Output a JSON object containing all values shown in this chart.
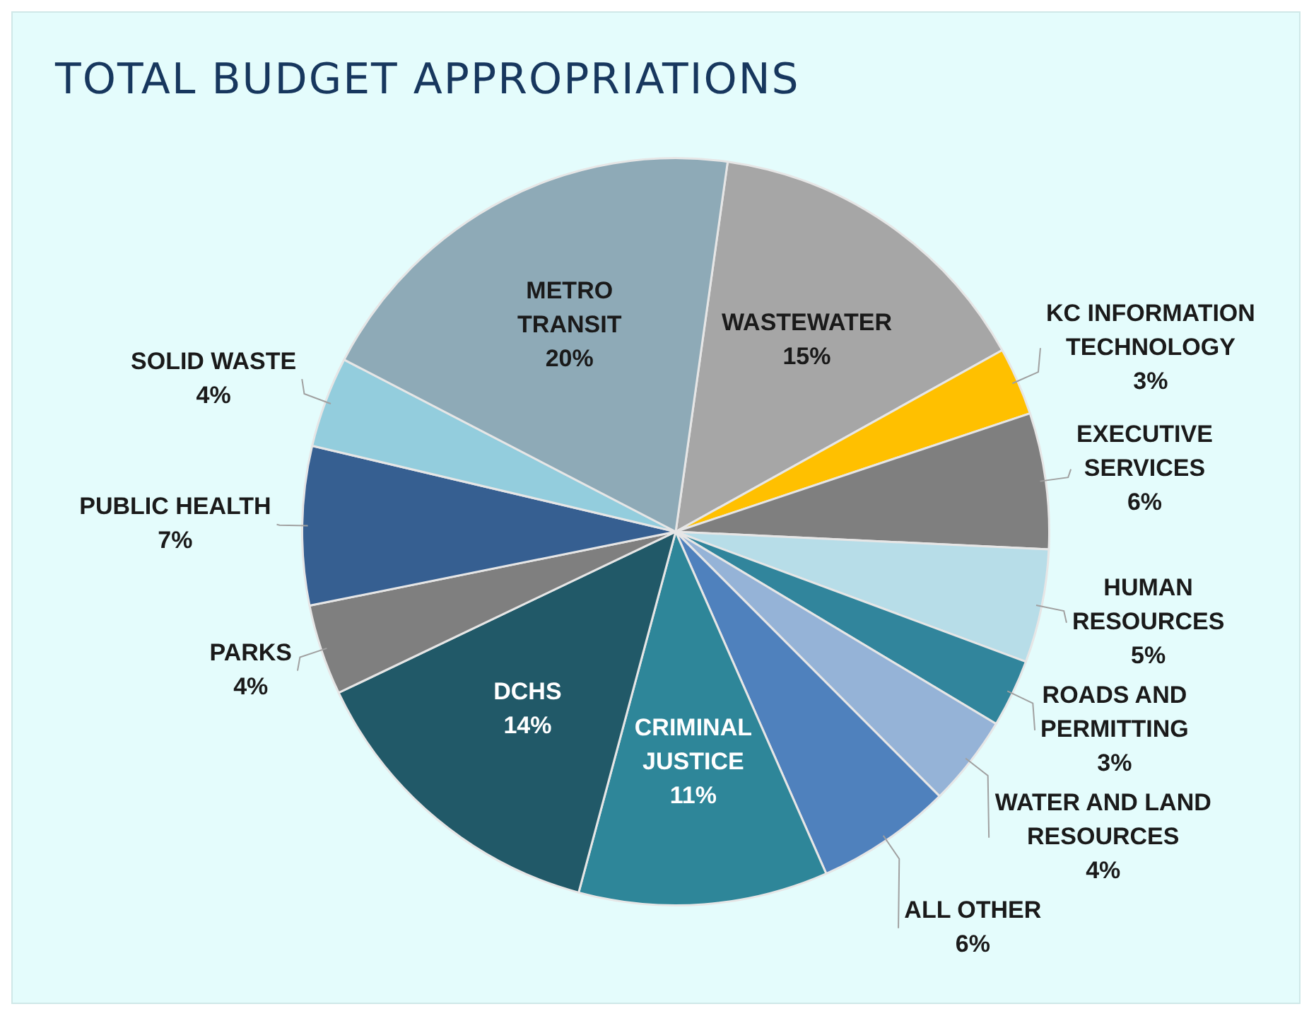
{
  "chart_data": {
    "type": "pie",
    "title": "TOTAL BUDGET APPROPRIATIONS",
    "categories": [
      "WASTEWATER",
      "KC INFORMATION TECHNOLOGY",
      "EXECUTIVE SERVICES",
      "HUMAN RESOURCES",
      "ROADS AND PERMITTING",
      "WATER AND LAND RESOURCES",
      "ALL OTHER",
      "CRIMINAL JUSTICE",
      "DCHS",
      "PARKS",
      "PUBLIC HEALTH",
      "SOLID WASTE",
      "METRO TRANSIT"
    ],
    "values": [
      15,
      3,
      6,
      5,
      3,
      4,
      6,
      11,
      14,
      4,
      7,
      4,
      20
    ],
    "value_labels": [
      "15%",
      "3%",
      "6%",
      "5%",
      "3%",
      "4%",
      "6%",
      "11%",
      "14%",
      "4%",
      "7%",
      "4%",
      "20%"
    ],
    "colors": [
      "#a6a6a6",
      "#ffc000",
      "#7f7f7f",
      "#b7dde8",
      "#31859c",
      "#95b3d7",
      "#4f81bd",
      "#2e8699",
      "#215968",
      "#7f7f7f",
      "#365f91",
      "#93cddd",
      "#8eaab7"
    ],
    "legend": false
  }
}
